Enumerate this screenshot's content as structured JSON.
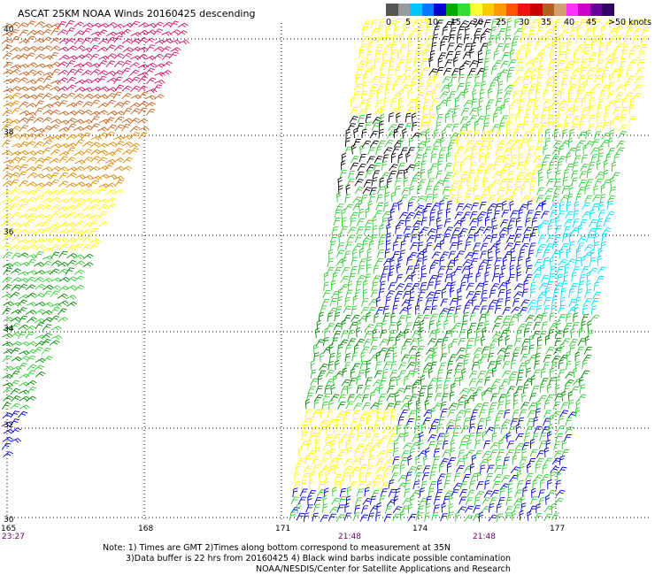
{
  "title": "ASCAT 25KM NOAA Winds 20160425 descending",
  "legend": {
    "labels": [
      "0",
      "5",
      "10",
      "15",
      "20",
      "25",
      "30",
      "35",
      "40",
      "45",
      ">50 knots"
    ],
    "colors": [
      "#555555",
      "#9a9a9a",
      "#00c8ff",
      "#0078ff",
      "#0000cc",
      "#00aa00",
      "#33dd33",
      "#ffff33",
      "#ffcc00",
      "#ff9900",
      "#ff5500",
      "#ee1111",
      "#cc0000",
      "#b06020",
      "#d2a070",
      "#ff33ff",
      "#cc00cc",
      "#660099",
      "#330066"
    ]
  },
  "axes": {
    "lat_labels": [
      "40",
      "38",
      "36",
      "34",
      "32",
      "30"
    ],
    "lon_labels": [
      "165",
      "168",
      "171",
      "174",
      "177"
    ]
  },
  "pass_times": [
    "23:27",
    "21:48",
    "21:48"
  ],
  "notes": [
    "Note: 1) Times are GMT 2)Times along bottom correspond to measurement at 35N",
    "3)Data buffer is 22 hrs from 20160425 4) Black wind barbs indicate possible contamination",
    "NOAA/NESDIS/Center for Satellite Applications and Research"
  ],
  "wind_colors": {
    "calm": "#000000",
    "light": "#00ddff",
    "blue": "#0000cc",
    "green_dark": "#008800",
    "green": "#33cc33",
    "yellow": "#ffff00",
    "orange": "#dd8800",
    "brown": "#c0601a",
    "red": "#cc1144",
    "magenta": "#cc1166"
  }
}
